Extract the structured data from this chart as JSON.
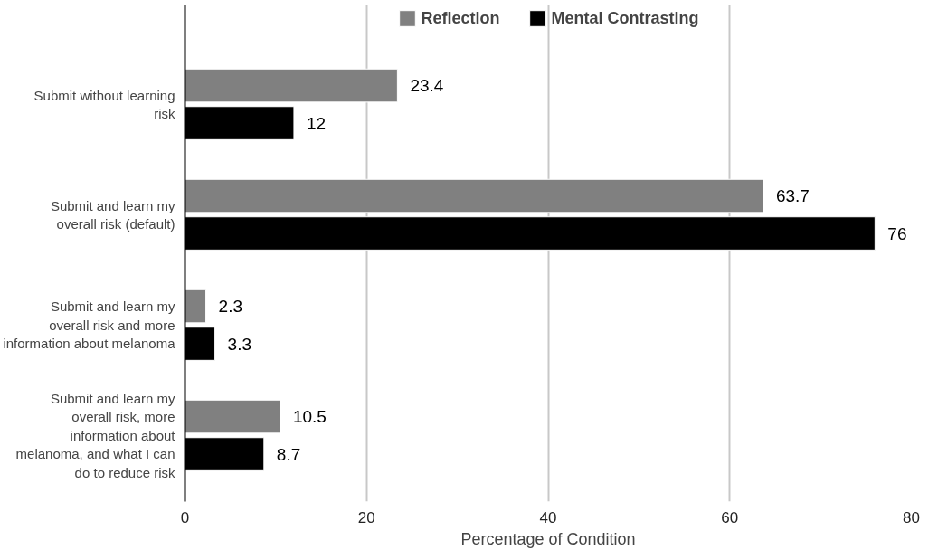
{
  "chart_data": {
    "type": "bar",
    "orientation": "horizontal",
    "xlabel": "Percentage of Condition",
    "categories": [
      "Submit without learning risk",
      "Submit and learn my overall risk (default)",
      "Submit and learn my overall risk and more information about melanoma",
      "Submit and learn my overall risk, more information about melanoma, and what I can do to reduce risk"
    ],
    "series": [
      {
        "name": "Reflection",
        "color": "#808080",
        "values": [
          23.4,
          63.7,
          2.3,
          10.5
        ]
      },
      {
        "name": "Mental Contrasting",
        "color": "#000000",
        "values": [
          12,
          76,
          3.3,
          8.7
        ]
      }
    ],
    "xlim": [
      0,
      80
    ],
    "xticks": [
      0,
      20,
      40,
      60,
      80
    ],
    "grid": "x",
    "legend": "top",
    "data_labels": true
  }
}
